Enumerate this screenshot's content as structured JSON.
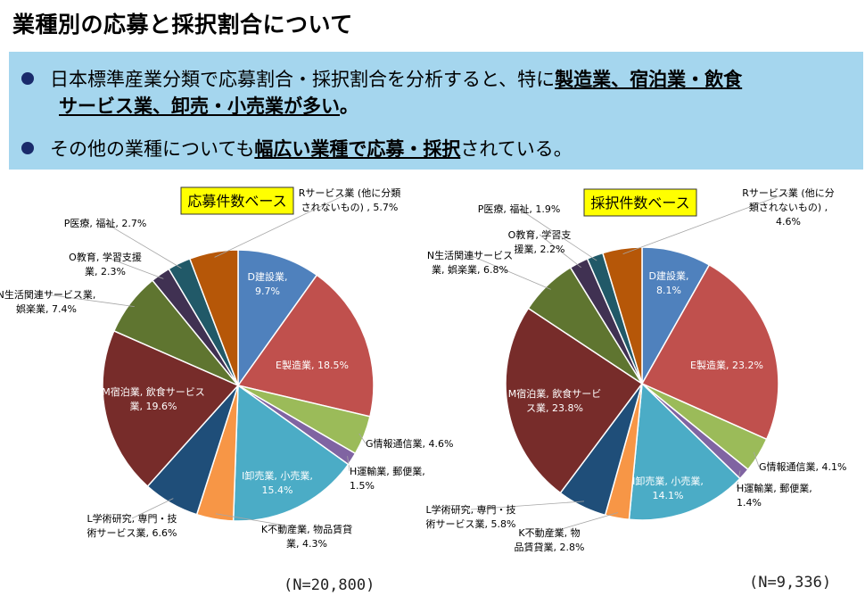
{
  "title": "業種別の応募と採択割合について",
  "bullets": {
    "b1_plain": "日本標準産業分類で応募割合・採択割合を分析すると、特に",
    "b1_bold_1": "製造業、宿泊業・飲食",
    "b1_bold_2": "サービス業、卸売・小売業が多い",
    "b1_end": "。",
    "b2_plain_1": "その他の業種についても",
    "b2_bold": "幅広い業種で応募・採択",
    "b2_plain_2": "されている。"
  },
  "colors": {
    "band": "#a5d6ee",
    "bullet": "#1a2b6b",
    "badge_bg": "#ffff00",
    "slices": [
      "#4f81bd",
      "#c0504d",
      "#9bbb59",
      "#8064a2",
      "#4bacc6",
      "#f79646",
      "#1f4e79",
      "#772c2a",
      "#5f7530",
      "#403152",
      "#215968",
      "#b65708"
    ]
  },
  "chart_data": [
    {
      "type": "pie",
      "title": "応募件数ベース",
      "n_label": "(N=20,800)",
      "slices": [
        {
          "label_lines": [
            "D建設業,",
            "9.7%"
          ],
          "value": 9.7
        },
        {
          "label_lines": [
            "E製造業, 18.5%"
          ],
          "value": 18.5
        },
        {
          "label_lines": [
            "G情報通信業, 4.6%"
          ],
          "value": 4.6
        },
        {
          "label_lines": [
            "H運輸業, 郵便業,",
            "1.5%"
          ],
          "value": 1.5
        },
        {
          "label_lines": [
            "I卸売業, 小売業,",
            "15.4%"
          ],
          "value": 15.4
        },
        {
          "label_lines": [
            "K不動産業, 物品賃貸",
            "業, 4.3%"
          ],
          "value": 4.3
        },
        {
          "label_lines": [
            "L学術研究, 専門・技",
            "術サービス業, 6.6%"
          ],
          "value": 6.6
        },
        {
          "label_lines": [
            "M宿泊業, 飲食サービス",
            "業, 19.6%"
          ],
          "value": 19.6
        },
        {
          "label_lines": [
            "N生活関連サービス業,",
            "娯楽業, 7.4%"
          ],
          "value": 7.4
        },
        {
          "label_lines": [
            "O教育, 学習支援",
            "業, 2.3%"
          ],
          "value": 2.3
        },
        {
          "label_lines": [
            "P医療, 福祉, 2.7%"
          ],
          "value": 2.7
        },
        {
          "label_lines": [
            "Rサービス業 (他に分類",
            "されないもの) , 5.7%"
          ],
          "value": 5.7
        }
      ]
    },
    {
      "type": "pie",
      "title": "採択件数ベース",
      "n_label": "(N=9,336)",
      "slices": [
        {
          "label_lines": [
            "D建設業,",
            "8.1%"
          ],
          "value": 8.1
        },
        {
          "label_lines": [
            "E製造業, 23.2%"
          ],
          "value": 23.2
        },
        {
          "label_lines": [
            "G情報通信業, 4.1%"
          ],
          "value": 4.1
        },
        {
          "label_lines": [
            "H運輸業, 郵便業,",
            "1.4%"
          ],
          "value": 1.4
        },
        {
          "label_lines": [
            "I卸売業, 小売業,",
            "14.1%"
          ],
          "value": 14.1
        },
        {
          "label_lines": [
            "K不動産業, 物",
            "品賃貸業, 2.8%"
          ],
          "value": 2.8
        },
        {
          "label_lines": [
            "L学術研究, 専門・技",
            "術サービス業, 5.8%"
          ],
          "value": 5.8
        },
        {
          "label_lines": [
            "M宿泊業, 飲食サービ",
            "ス業, 23.8%"
          ],
          "value": 23.8
        },
        {
          "label_lines": [
            "N生活関連サービス",
            "業, 娯楽業, 6.8%"
          ],
          "value": 6.8
        },
        {
          "label_lines": [
            "O教育, 学習支",
            "援業, 2.2%"
          ],
          "value": 2.2
        },
        {
          "label_lines": [
            "P医療, 福祉, 1.9%"
          ],
          "value": 1.9
        },
        {
          "label_lines": [
            "Rサービス業 (他に分",
            "類されないもの) ,",
            "4.6%"
          ],
          "value": 4.6
        }
      ]
    }
  ]
}
